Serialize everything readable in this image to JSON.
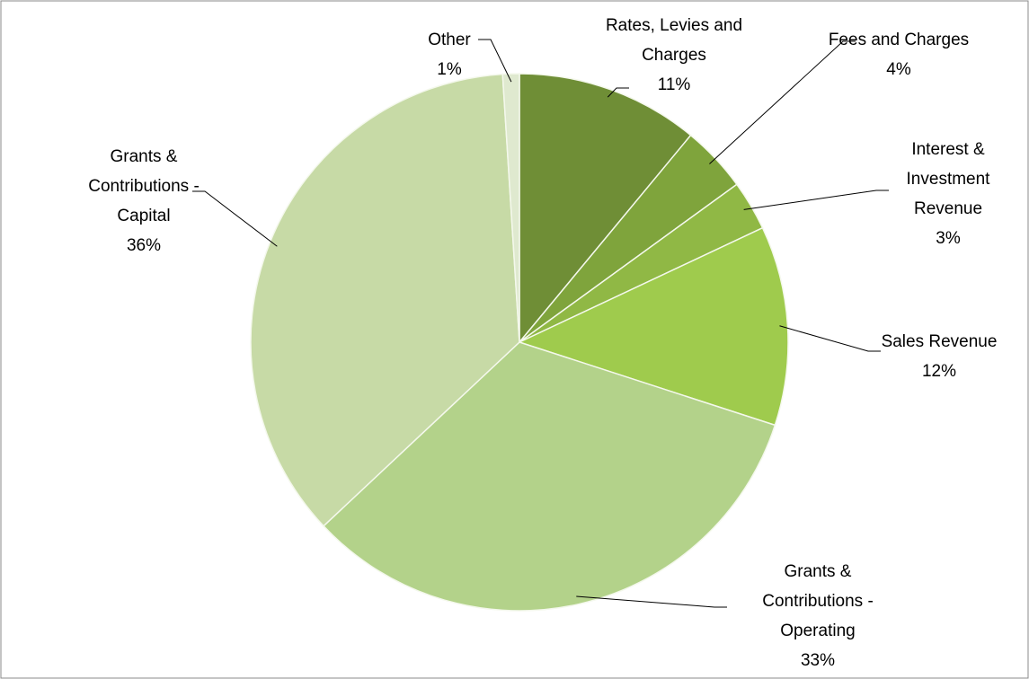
{
  "chart_data": {
    "type": "pie",
    "categories": [
      "Rates, Levies and Charges",
      "Fees and Charges",
      "Interest & Investment Revenue",
      "Sales Revenue",
      "Grants & Contributions - Operating",
      "Grants & Contributions - Capital",
      "Other"
    ],
    "values": [
      11,
      4,
      3,
      12,
      33,
      36,
      1
    ],
    "value_labels": [
      "11%",
      "4%",
      "3%",
      "12%",
      "33%",
      "36%",
      "1%"
    ],
    "colors": [
      "#6f8e36",
      "#7fa43c",
      "#90b845",
      "#9fcb4d",
      "#b3d28a",
      "#c7daa6",
      "#dfe9cf"
    ]
  }
}
